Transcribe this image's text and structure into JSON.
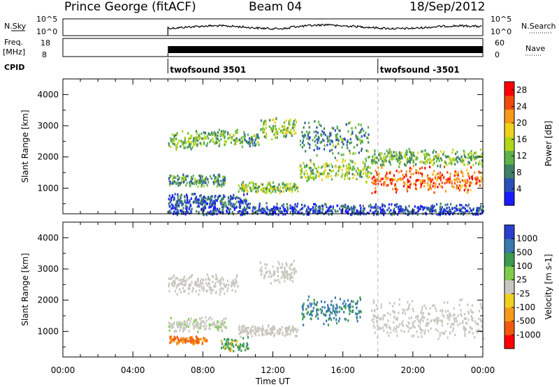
{
  "header": {
    "station": "Prince George (fitACF)",
    "beam": "Beam 04",
    "date": "18/Sep/2012"
  },
  "strips": {
    "nsky_label": "N.Sky",
    "nsky_ticks": [
      "10^5",
      "10^0"
    ],
    "nsearch_label": "N.Search",
    "nsearch_ticks": [
      "10^5",
      "10^0"
    ],
    "freq_label": "Freq.",
    "freq_unit": "[MHz]",
    "freq_ticks": [
      "18",
      "8"
    ],
    "nave_label": "Nave",
    "nave_ticks": [
      "60",
      "0"
    ],
    "cpid_label": "CPID",
    "cpid_programs": [
      {
        "name": "twofsound 3501",
        "start": "06:00"
      },
      {
        "name": "twofsound -3501",
        "start": "18:00"
      }
    ]
  },
  "chart_data": [
    {
      "type": "heatmap",
      "title": "Power",
      "xlabel": "Time UT",
      "ylabel": "Slant Range [km]",
      "colorbar_label": "Power [dB]",
      "x_ticks": [
        "00:00",
        "04:00",
        "08:00",
        "12:00",
        "16:00",
        "20:00",
        "00:00"
      ],
      "xlim_hours": [
        0,
        24
      ],
      "y_ticks": [
        1000,
        2000,
        3000,
        4000
      ],
      "ylim": [
        180,
        4500
      ],
      "colorbar_ticks": [
        4,
        8,
        12,
        16,
        20,
        24,
        28
      ],
      "colorbar_range": [
        0,
        30
      ],
      "colors": [
        "#1a1aff",
        "#2a4fb8",
        "#3f7f66",
        "#5fb24a",
        "#b2d61a",
        "#f0d020",
        "#f59a1a",
        "#f04a10",
        "#ff0000"
      ],
      "data_start_hour": 6.0,
      "scatter_regions": [
        {
          "t_start": 6.0,
          "t_end": 7.6,
          "range_center": 2550,
          "width": 350,
          "level_db": 12
        },
        {
          "t_start": 7.6,
          "t_end": 10.0,
          "range_center": 2650,
          "width": 300,
          "level_db": 12
        },
        {
          "t_start": 10.0,
          "t_end": 11.2,
          "range_center": 2600,
          "width": 250,
          "level_db": 10
        },
        {
          "t_start": 11.2,
          "t_end": 13.3,
          "range_center": 2950,
          "width": 400,
          "level_db": 14
        },
        {
          "t_start": 13.5,
          "t_end": 15.4,
          "range_center": 2650,
          "width": 600,
          "level_db": 8
        },
        {
          "t_start": 15.4,
          "t_end": 17.5,
          "range_center": 2550,
          "width": 700,
          "level_db": 9
        },
        {
          "t_start": 6.0,
          "t_end": 9.3,
          "range_center": 1250,
          "width": 250,
          "level_db": 10
        },
        {
          "t_start": 10.0,
          "t_end": 13.4,
          "range_center": 1050,
          "width": 200,
          "level_db": 13
        },
        {
          "t_start": 13.5,
          "t_end": 17.6,
          "range_center": 1600,
          "width": 400,
          "level_db": 14
        },
        {
          "t_start": 17.6,
          "t_end": 24.0,
          "range_center": 1300,
          "width": 500,
          "level_db": 24
        },
        {
          "t_start": 17.6,
          "t_end": 24.0,
          "range_center": 2000,
          "width": 300,
          "level_db": 12
        },
        {
          "t_start": 6.0,
          "t_end": 10.5,
          "range_center": 650,
          "width": 220,
          "level_db": 6
        },
        {
          "t_start": 6.0,
          "t_end": 24.0,
          "range_center": 320,
          "width": 250,
          "level_db": 5
        }
      ]
    },
    {
      "type": "heatmap",
      "title": "Velocity",
      "xlabel": "Time UT",
      "ylabel": "Slant Range [km]",
      "colorbar_label": "Velocity [m s-1]",
      "x_ticks": [
        "00:00",
        "04:00",
        "08:00",
        "12:00",
        "16:00",
        "20:00",
        "00:00"
      ],
      "xlim_hours": [
        0,
        24
      ],
      "y_ticks": [
        1000,
        2000,
        3000,
        4000
      ],
      "ylim": [
        180,
        4500
      ],
      "colorbar_ticks": [
        "1000",
        "500",
        "100",
        "25",
        "-25",
        "-100",
        "-500",
        "-1000"
      ],
      "colors": [
        "#2a3fd0",
        "#3a78b0",
        "#3a9a50",
        "#7fcc4a",
        "#c8c8c0",
        "#f0d020",
        "#f59a1a",
        "#f05a10",
        "#ff0000"
      ],
      "data_start_hour": 6.0,
      "scatter_regions": [
        {
          "t_start": 6.0,
          "t_end": 10.0,
          "range_center": 2550,
          "width": 350,
          "velocity": 0
        },
        {
          "t_start": 11.2,
          "t_end": 13.3,
          "range_center": 2950,
          "width": 400,
          "velocity": 0
        },
        {
          "t_start": 6.0,
          "t_end": 9.3,
          "range_center": 1250,
          "width": 250,
          "velocity": 10
        },
        {
          "t_start": 10.0,
          "t_end": 13.4,
          "range_center": 1050,
          "width": 200,
          "velocity": 0
        },
        {
          "t_start": 13.6,
          "t_end": 17.0,
          "range_center": 1700,
          "width": 500,
          "velocity": 600
        },
        {
          "t_start": 17.6,
          "t_end": 24.0,
          "range_center": 1400,
          "width": 700,
          "velocity": 0
        },
        {
          "t_start": 6.0,
          "t_end": 8.2,
          "range_center": 750,
          "width": 150,
          "velocity": -500
        },
        {
          "t_start": 9.0,
          "t_end": 10.6,
          "range_center": 600,
          "width": 250,
          "velocity": 200
        }
      ]
    }
  ]
}
